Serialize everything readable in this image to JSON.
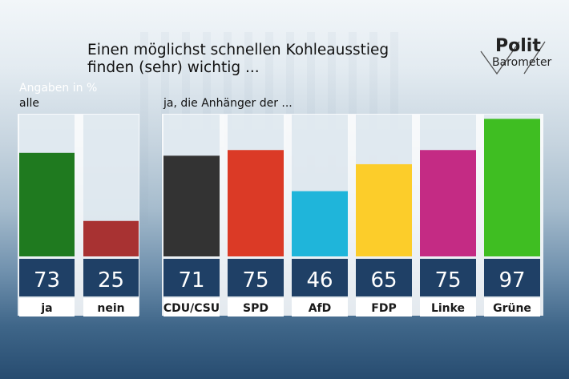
{
  "title_lines": [
    "Einen möglichst schnellen Kohleausstieg",
    "finden (sehr) wichtig ..."
  ],
  "logo": {
    "top": "Polit",
    "bottom": "Barometer"
  },
  "unit_label": "Angaben in %",
  "colors": {
    "ja": "#1f7a1f",
    "nein": "#a83232",
    "CDU/CSU": "#333333",
    "SPD": "#db3a26",
    "AfD": "#1fb5da",
    "FDP": "#fccd2a",
    "Linke": "#c42b84",
    "Grüne": "#3fbe22",
    "value_box": "#1f4066"
  },
  "chart_data": [
    {
      "type": "bar",
      "group_label": "alle",
      "categories": [
        "ja",
        "nein"
      ],
      "values": [
        73,
        25
      ],
      "ylim": [
        0,
        100
      ],
      "grid": false
    },
    {
      "type": "bar",
      "group_label": "ja, die Anhänger der ...",
      "categories": [
        "CDU/CSU",
        "SPD",
        "AfD",
        "FDP",
        "Linke",
        "Grüne"
      ],
      "values": [
        71,
        75,
        46,
        65,
        75,
        97
      ],
      "ylim": [
        0,
        100
      ],
      "grid": false
    }
  ]
}
